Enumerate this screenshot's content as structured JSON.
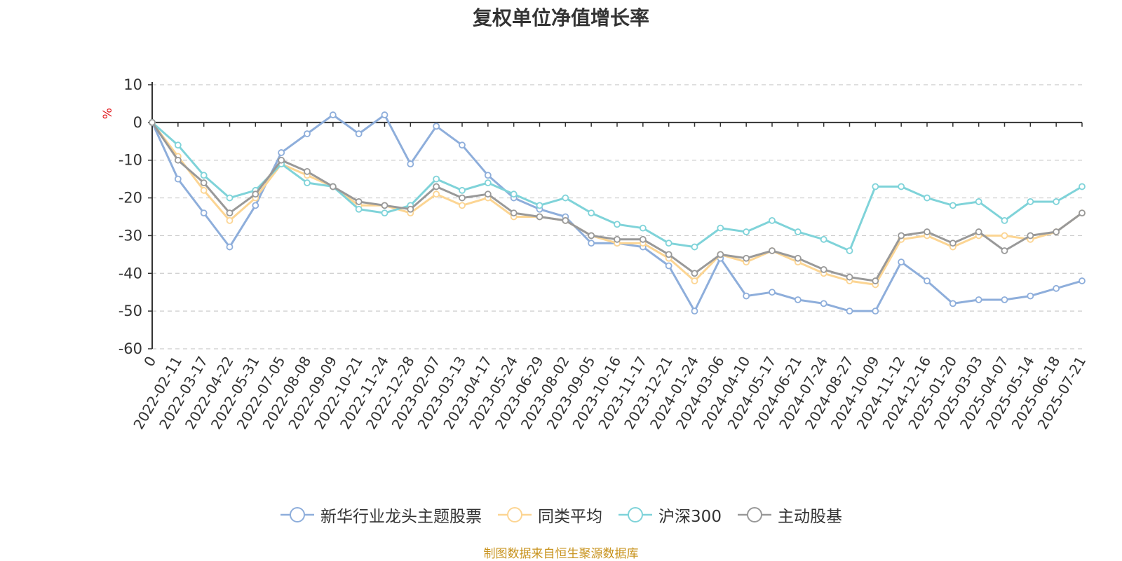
{
  "chart_data": {
    "type": "line",
    "title": "复权单位净值增长率",
    "ylabel": "%",
    "ylim": [
      -60,
      10
    ],
    "yticks": [
      10,
      0,
      -10,
      -20,
      -30,
      -40,
      -50,
      -60
    ],
    "grid": true,
    "legend_position": "bottom",
    "x": [
      "0",
      "2022-02-11",
      "2022-03-17",
      "2022-04-22",
      "2022-05-31",
      "2022-07-05",
      "2022-08-08",
      "2022-09-09",
      "2022-10-21",
      "2022-11-24",
      "2022-12-28",
      "2023-02-07",
      "2023-03-13",
      "2023-04-17",
      "2023-05-24",
      "2023-06-29",
      "2023-08-02",
      "2023-09-05",
      "2023-10-16",
      "2023-11-17",
      "2023-12-21",
      "2024-01-24",
      "2024-03-06",
      "2024-04-10",
      "2024-05-17",
      "2024-06-21",
      "2024-07-24",
      "2024-08-27",
      "2024-10-09",
      "2024-11-12",
      "2024-12-16",
      "2025-01-20",
      "2025-03-03",
      "2025-04-07",
      "2025-05-14",
      "2025-06-18",
      "2025-07-21"
    ],
    "series": [
      {
        "name": "新华行业龙头主题股票",
        "color": "#8eaedb",
        "values": [
          0,
          -15,
          -24,
          -33,
          -22,
          -8,
          -3,
          2,
          -3,
          2,
          -11,
          -1,
          -6,
          -14,
          -20,
          -23,
          -25,
          -32,
          -32,
          -33,
          -38,
          -50,
          -36,
          -46,
          -45,
          -47,
          -48,
          -50,
          -50,
          -37,
          -42,
          -48,
          -47,
          -47,
          -46,
          -44,
          -42
        ]
      },
      {
        "name": "同类平均",
        "color": "#fcd593",
        "values": [
          0,
          -9,
          -18,
          -26,
          -20,
          -11,
          -14,
          -17,
          -22,
          -22,
          -24,
          -19,
          -22,
          -20,
          -25,
          -25,
          -26,
          -30,
          -32,
          -32,
          -36,
          -42,
          -35,
          -37,
          -34,
          -37,
          -40,
          -42,
          -43,
          -31,
          -30,
          -33,
          -30,
          -30,
          -31,
          -29,
          -24
        ]
      },
      {
        "name": "沪深300",
        "color": "#7fd3d9",
        "values": [
          0,
          -6,
          -14,
          -20,
          -18,
          -11,
          -16,
          -17,
          -23,
          -24,
          -22,
          -15,
          -18,
          -16,
          -19,
          -22,
          -20,
          -24,
          -27,
          -28,
          -32,
          -33,
          -28,
          -29,
          -26,
          -29,
          -31,
          -34,
          -17,
          -17,
          -20,
          -22,
          -21,
          -26,
          -21,
          -21,
          -17
        ]
      },
      {
        "name": "主动股基",
        "color": "#999999",
        "values": [
          0,
          -10,
          -16,
          -24,
          -19,
          -10,
          -13,
          -17,
          -21,
          -22,
          -23,
          -17,
          -20,
          -19,
          -24,
          -25,
          -26,
          -30,
          -31,
          -31,
          -35,
          -40,
          -35,
          -36,
          -34,
          -36,
          -39,
          -41,
          -42,
          -30,
          -29,
          -32,
          -29,
          -34,
          -30,
          -29,
          -24
        ]
      }
    ]
  },
  "footer": {
    "source": "制图数据来自恒生聚源数据库"
  }
}
